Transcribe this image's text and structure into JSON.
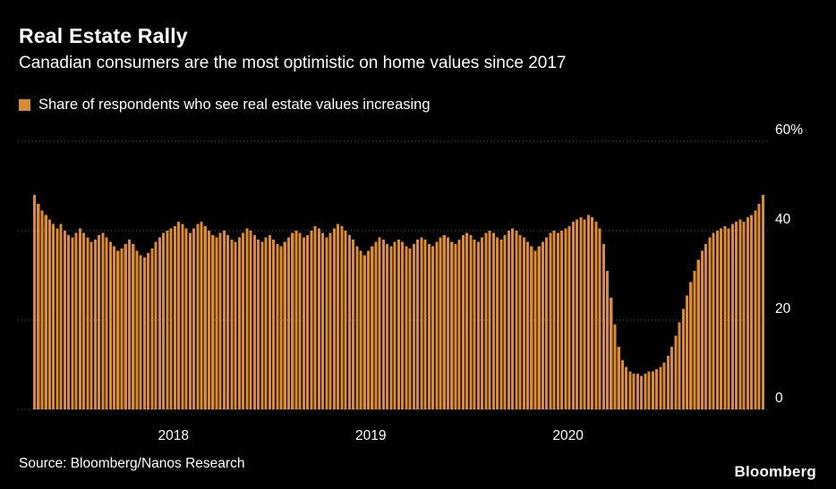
{
  "header": {
    "title": "Real Estate Rally",
    "subtitle": "Canadian consumers are the most optimistic on home values since 2017"
  },
  "legend": {
    "label": "Share of respondents who see real estate values increasing",
    "swatch_color": "#DB8B35"
  },
  "footer": {
    "source": "Source: Bloomberg/Nanos Research",
    "brand": "Bloomberg"
  },
  "colors": {
    "background": "#000000",
    "bar": "#DB8B35",
    "grid": "#5E5E5E",
    "text": "#FFFFFF"
  },
  "chart_data": {
    "type": "bar",
    "title": "Real Estate Rally",
    "subtitle": "Canadian consumers are the most optimistic on home values since 2017",
    "series_name": "Share of respondents who see real estate values increasing",
    "unit": "%",
    "frequency": "weekly",
    "xlabel": "",
    "ylabel": "",
    "ylim": [
      0,
      60
    ],
    "grid": "dotted-horizontal",
    "legend_position": "top-left",
    "y_ticks": [
      {
        "value": 0,
        "label": "0"
      },
      {
        "value": 20,
        "label": "20"
      },
      {
        "value": 40,
        "label": "40"
      },
      {
        "value": 60,
        "label": "60%"
      }
    ],
    "x_ticks": [
      {
        "label": "2018",
        "index": 37
      },
      {
        "label": "2019",
        "index": 89
      },
      {
        "label": "2020",
        "index": 141
      }
    ],
    "values": [
      48,
      46,
      44.5,
      43.5,
      42.5,
      41.5,
      40.5,
      41.5,
      40,
      39,
      38.5,
      39.5,
      40.5,
      39.5,
      38.5,
      37.5,
      38,
      39,
      39.5,
      38.5,
      37.5,
      36.5,
      35.5,
      36,
      37,
      38,
      37,
      35.5,
      34.5,
      34,
      35,
      36,
      37.5,
      38.5,
      39.5,
      40,
      40.5,
      41,
      42,
      41.5,
      40.5,
      39.5,
      40.5,
      41.5,
      42,
      41,
      40,
      39,
      38.5,
      39.5,
      40,
      39,
      38,
      37.5,
      38.5,
      39.5,
      40.5,
      40,
      39,
      38,
      37.5,
      38.5,
      39,
      38,
      37,
      36.5,
      37.5,
      38.5,
      39.5,
      40,
      39.5,
      38.5,
      39,
      40,
      41,
      40.5,
      39.5,
      38.5,
      39.5,
      40.5,
      41.5,
      41,
      40,
      39,
      38,
      36.5,
      35.5,
      34.5,
      35.5,
      36.5,
      37.5,
      38.5,
      38,
      37,
      36.5,
      37.5,
      38,
      37.5,
      36.5,
      36,
      37,
      38,
      38.5,
      38,
      37,
      36.5,
      37.5,
      38.5,
      39,
      38.5,
      37.5,
      37,
      38,
      39,
      39.5,
      39,
      38,
      37.5,
      38.5,
      39.5,
      40,
      39.5,
      38.5,
      38,
      39,
      40,
      40.5,
      40,
      39,
      38.5,
      37.5,
      36.5,
      35.5,
      36.5,
      37.5,
      38.5,
      39.5,
      40,
      39.5,
      40,
      40.5,
      41,
      42,
      42.5,
      43,
      42.5,
      43.5,
      43,
      42,
      40.5,
      37,
      31,
      25,
      19,
      14,
      11,
      9.5,
      8.5,
      8,
      8,
      7.5,
      8,
      8.5,
      8.5,
      9,
      9.5,
      10.5,
      12,
      14,
      16.5,
      19.5,
      22.5,
      25.5,
      28.5,
      31,
      33.5,
      35.5,
      37,
      38.5,
      39.5,
      40,
      40.5,
      41,
      40.5,
      41.5,
      42,
      42.5,
      42,
      43,
      43.5,
      44.5,
      46,
      48
    ]
  }
}
